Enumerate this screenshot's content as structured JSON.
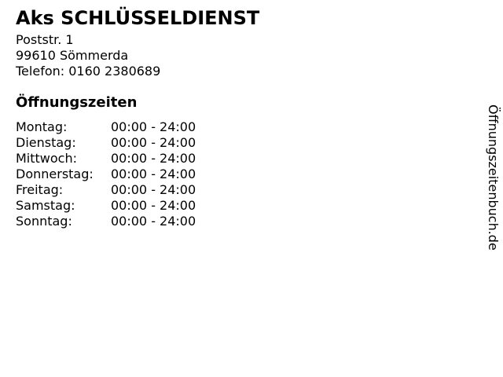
{
  "business": {
    "name": "Aks SCHLÜSSELDIENST",
    "street": "Poststr. 1",
    "city": "99610 Sömmerda",
    "phone_line": "Telefon: 0160 2380689"
  },
  "hours": {
    "heading": "Öffnungszeiten",
    "rows": [
      {
        "day": "Montag:",
        "time": "00:00 - 24:00"
      },
      {
        "day": "Dienstag:",
        "time": "00:00 - 24:00"
      },
      {
        "day": "Mittwoch:",
        "time": "00:00 - 24:00"
      },
      {
        "day": "Donnerstag:",
        "time": "00:00 - 24:00"
      },
      {
        "day": "Freitag:",
        "time": "00:00 - 24:00"
      },
      {
        "day": "Samstag:",
        "time": "00:00 - 24:00"
      },
      {
        "day": "Sonntag:",
        "time": "00:00 - 24:00"
      }
    ]
  },
  "watermark": {
    "text": "Öffnungszeitenbuch.de"
  },
  "colors": {
    "text": "#000000",
    "background": "#ffffff"
  }
}
